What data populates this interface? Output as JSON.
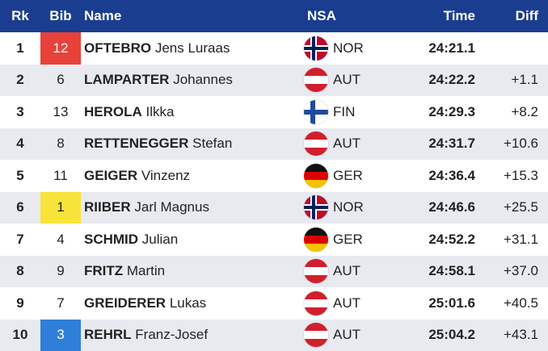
{
  "header": {
    "rank": "Rk",
    "bib": "Bib",
    "name": "Name",
    "nsa": "NSA",
    "time": "Time",
    "diff": "Diff"
  },
  "colors": {
    "header_bg": "#1a3d8f",
    "row_alt_bg": "#e8eaf0",
    "bib_red": "#e8413a",
    "bib_yellow": "#f7e43a",
    "bib_blue": "#2f7fd9"
  },
  "rows": [
    {
      "rank": "1",
      "bib": "12",
      "bib_style": "red",
      "surname": "OFTEBRO",
      "firstname": "Jens Luraas",
      "nsa": "NOR",
      "flag": "norway-flag-icon",
      "time": "24:21.1",
      "diff": ""
    },
    {
      "rank": "2",
      "bib": "6",
      "bib_style": "",
      "surname": "LAMPARTER",
      "firstname": "Johannes",
      "nsa": "AUT",
      "flag": "austria-flag-icon",
      "time": "24:22.2",
      "diff": "+1.1"
    },
    {
      "rank": "3",
      "bib": "13",
      "bib_style": "",
      "surname": "HEROLA",
      "firstname": "Ilkka",
      "nsa": "FIN",
      "flag": "finland-flag-icon",
      "time": "24:29.3",
      "diff": "+8.2"
    },
    {
      "rank": "4",
      "bib": "8",
      "bib_style": "",
      "surname": "RETTENEGGER",
      "firstname": "Stefan",
      "nsa": "AUT",
      "flag": "austria-flag-icon",
      "time": "24:31.7",
      "diff": "+10.6"
    },
    {
      "rank": "5",
      "bib": "11",
      "bib_style": "",
      "surname": "GEIGER",
      "firstname": "Vinzenz",
      "nsa": "GER",
      "flag": "germany-flag-icon",
      "time": "24:36.4",
      "diff": "+15.3"
    },
    {
      "rank": "6",
      "bib": "1",
      "bib_style": "yellow",
      "surname": "RIIBER",
      "firstname": "Jarl Magnus",
      "nsa": "NOR",
      "flag": "norway-flag-icon",
      "time": "24:46.6",
      "diff": "+25.5"
    },
    {
      "rank": "7",
      "bib": "4",
      "bib_style": "",
      "surname": "SCHMID",
      "firstname": "Julian",
      "nsa": "GER",
      "flag": "germany-flag-icon",
      "time": "24:52.2",
      "diff": "+31.1"
    },
    {
      "rank": "8",
      "bib": "9",
      "bib_style": "",
      "surname": "FRITZ",
      "firstname": "Martin",
      "nsa": "AUT",
      "flag": "austria-flag-icon",
      "time": "24:58.1",
      "diff": "+37.0"
    },
    {
      "rank": "9",
      "bib": "7",
      "bib_style": "",
      "surname": "GREIDERER",
      "firstname": "Lukas",
      "nsa": "AUT",
      "flag": "austria-flag-icon",
      "time": "25:01.6",
      "diff": "+40.5"
    },
    {
      "rank": "10",
      "bib": "3",
      "bib_style": "blue",
      "surname": "REHRL",
      "firstname": "Franz-Josef",
      "nsa": "AUT",
      "flag": "austria-flag-icon",
      "time": "25:04.2",
      "diff": "+43.1"
    }
  ]
}
